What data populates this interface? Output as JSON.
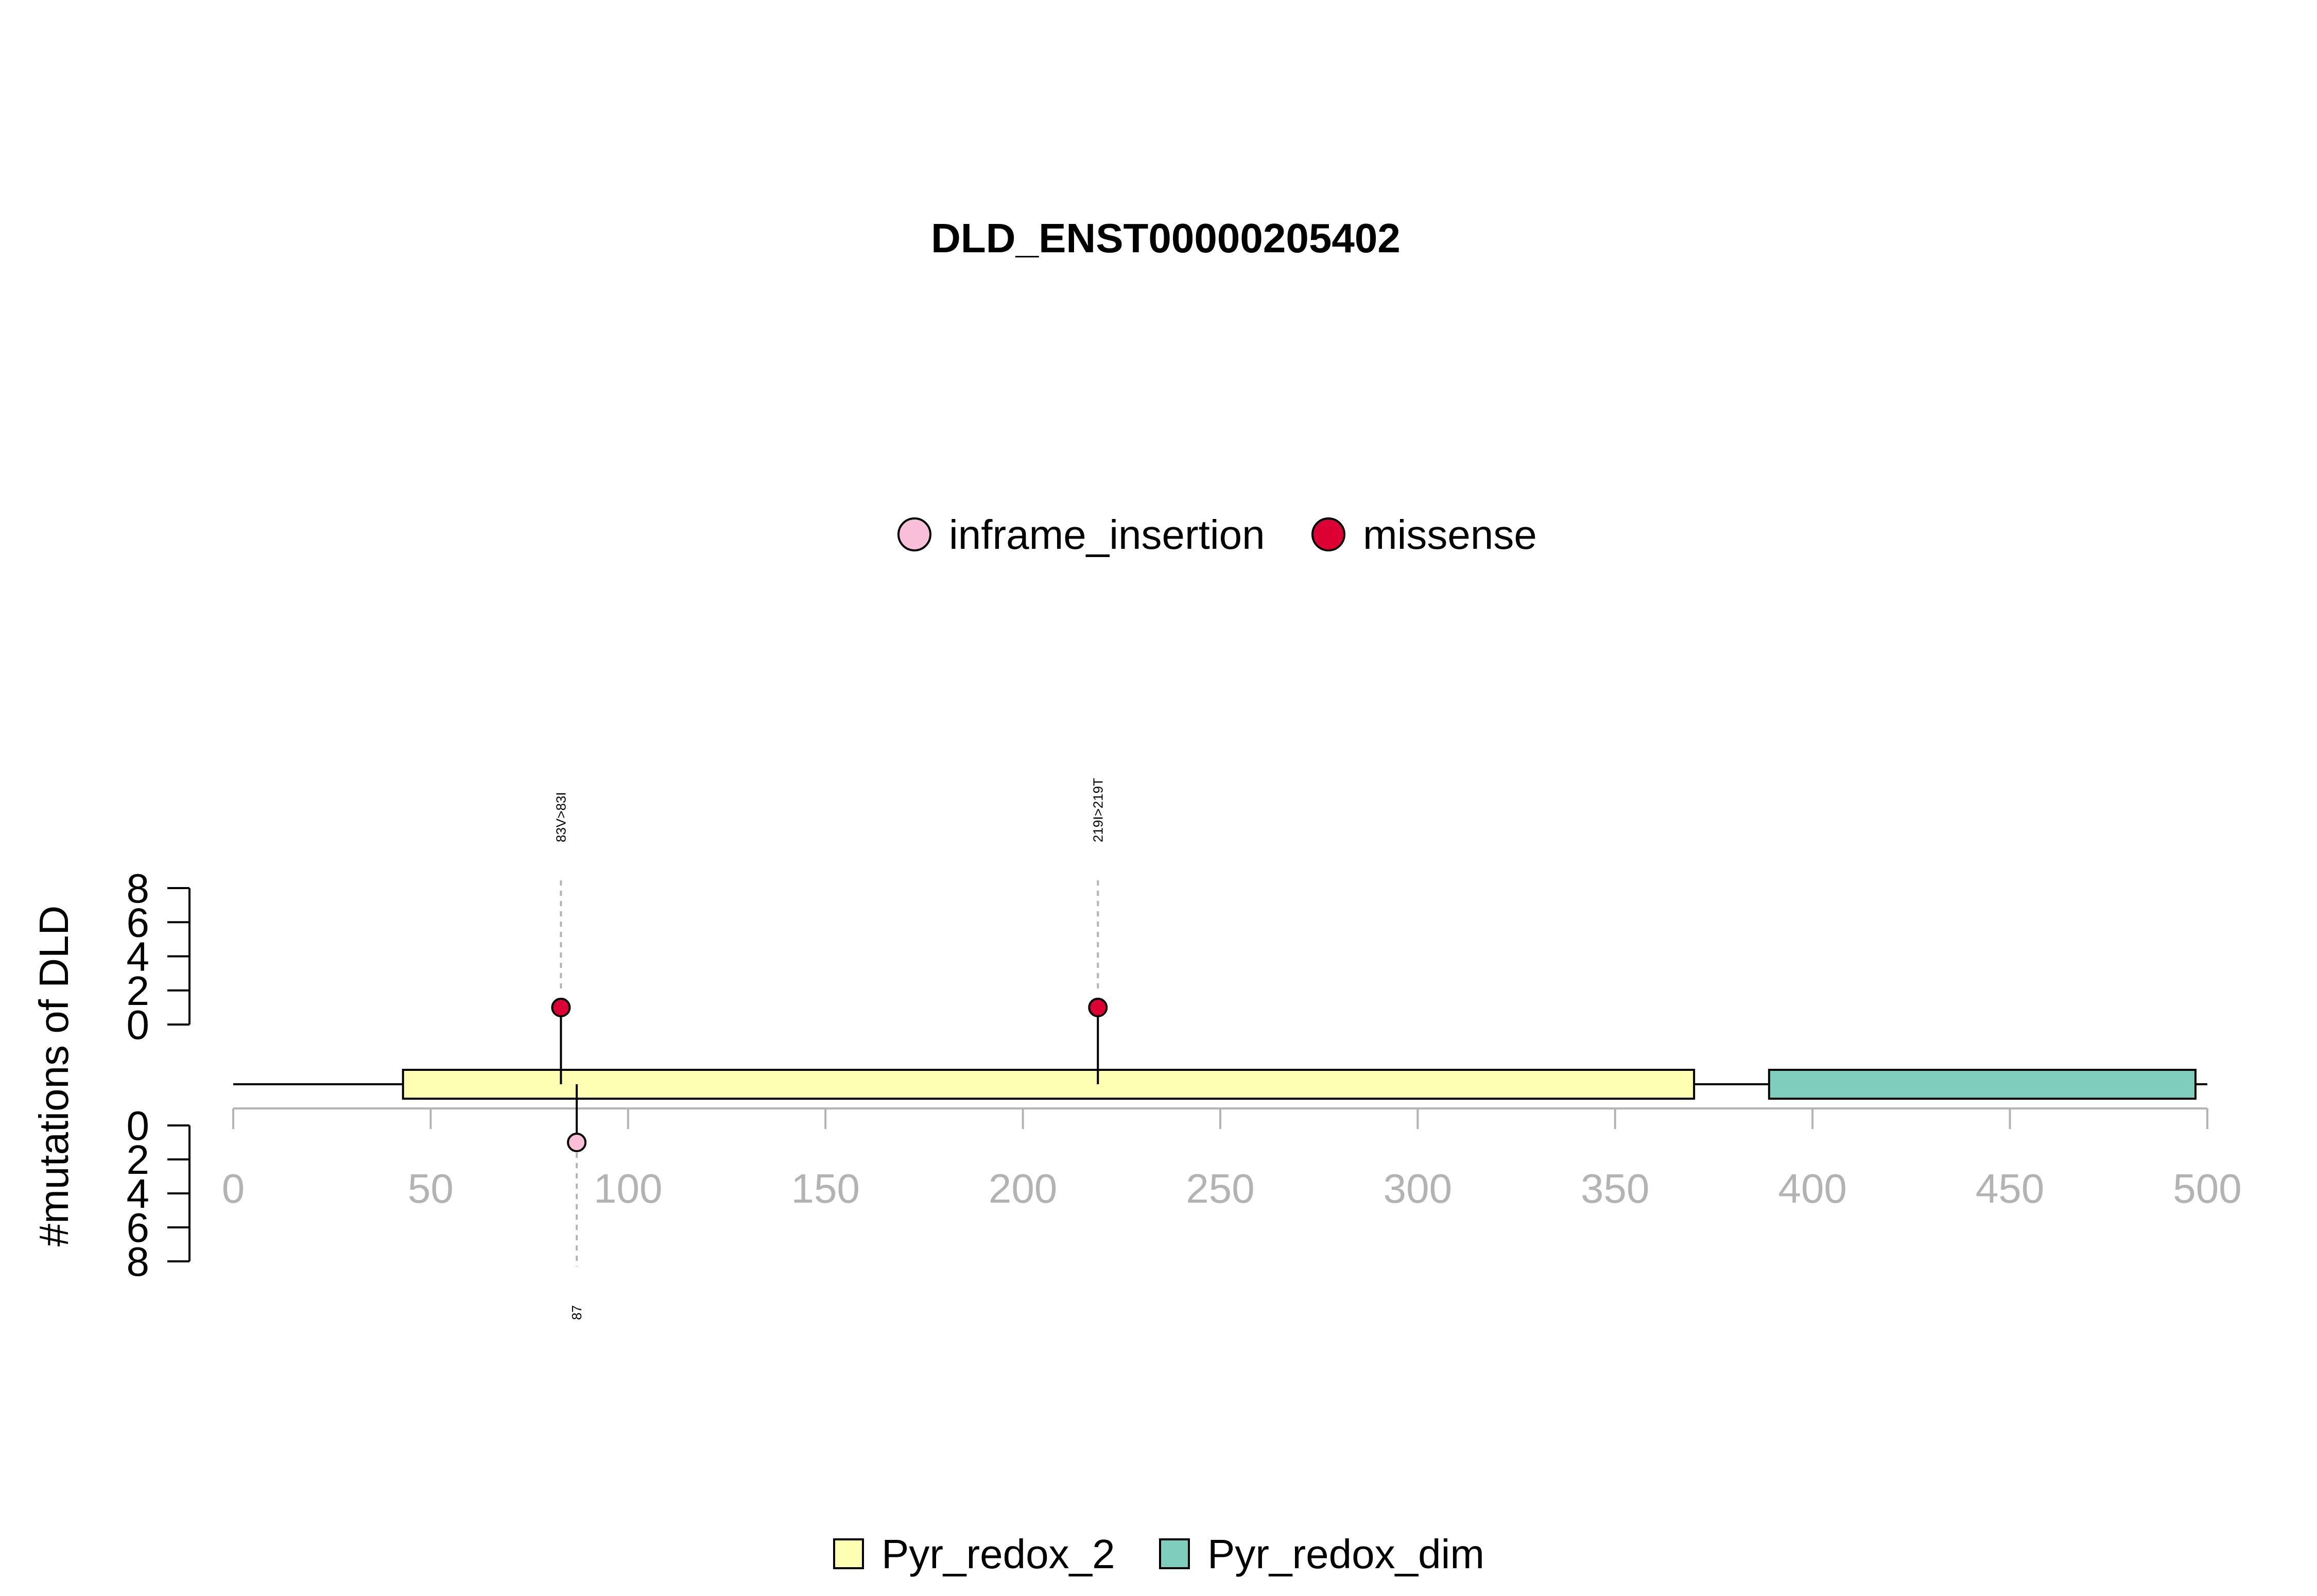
{
  "chart_data": {
    "type": "lollipop",
    "title": "DLD_ENST00000205402",
    "ylabel": "#mutations of DLD",
    "xlim": [
      0,
      500
    ],
    "x_ticks": [
      "0",
      "50",
      "100",
      "150",
      "200",
      "250",
      "300",
      "350",
      "400",
      "450",
      "500"
    ],
    "upper_y_ticks": [
      "0",
      "2",
      "4",
      "6",
      "8"
    ],
    "lower_y_ticks": [
      "0",
      "2",
      "4",
      "6",
      "8"
    ],
    "ylim": [
      0,
      8
    ],
    "legend_top": [
      {
        "name": "inframe_insertion",
        "color": "#f9bfd9"
      },
      {
        "name": "missense",
        "color": "#dc0033"
      }
    ],
    "legend_bottom": [
      {
        "name": "Pyr_redox_2",
        "color": "#ffffb3"
      },
      {
        "name": "Pyr_redox_dim",
        "color": "#7fcdbb"
      }
    ],
    "domains": [
      {
        "name": "Pyr_redox_2",
        "start": 43,
        "end": 370,
        "color": "#ffffb3"
      },
      {
        "name": "Pyr_redox_dim",
        "start": 389,
        "end": 497,
        "color": "#7fcdbb"
      }
    ],
    "mutations_upper": [
      {
        "position": 83,
        "count": 1,
        "type": "missense",
        "label": "83V>83I"
      },
      {
        "position": 219,
        "count": 1,
        "type": "missense",
        "label": "219I>219T"
      }
    ],
    "mutations_lower": [
      {
        "position": 87,
        "count": 1,
        "type": "inframe_insertion",
        "label": "87"
      }
    ]
  }
}
